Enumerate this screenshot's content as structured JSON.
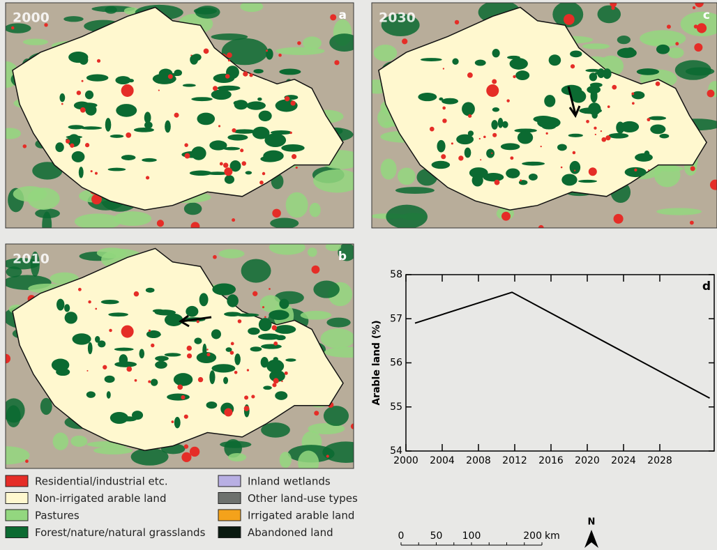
{
  "maps": [
    {
      "year": "2000",
      "letter": "a"
    },
    {
      "year": "2030",
      "letter": "c"
    },
    {
      "year": "2010",
      "letter": "b"
    }
  ],
  "legend": [
    {
      "label": "Residential/industrial etc.",
      "color": "#e52d27"
    },
    {
      "label": "Non-irrigated arable land",
      "color": "#fff8cf"
    },
    {
      "label": "Pastures",
      "color": "#93d77f"
    },
    {
      "label": "Forest/nature/natural grasslands",
      "color": "#0b6a31"
    },
    {
      "label": "Inland wetlands",
      "color": "#b8afe3"
    },
    {
      "label": "Other land-use types",
      "color": "#6d716d"
    },
    {
      "label": "Irrigated arable land",
      "color": "#f4a21b"
    },
    {
      "label": "Abandoned land",
      "color": "#0a1a10"
    }
  ],
  "chart_data": {
    "type": "line",
    "label": "d",
    "y_label": "Arable land (%)",
    "x": [
      2001,
      2011.7,
      2033.5
    ],
    "values": [
      56.9,
      57.6,
      55.2
    ],
    "color": "#000000",
    "xlim": [
      2000,
      2034
    ],
    "ylim": [
      54,
      58
    ],
    "xticks": [
      2000,
      2004,
      2008,
      2012,
      2016,
      2020,
      2024,
      2028
    ],
    "yticks": [
      54,
      55,
      56,
      57,
      58
    ]
  },
  "scale_bar": {
    "ticks": [
      0,
      50,
      100,
      200
    ],
    "unit": "km"
  },
  "north": "N"
}
